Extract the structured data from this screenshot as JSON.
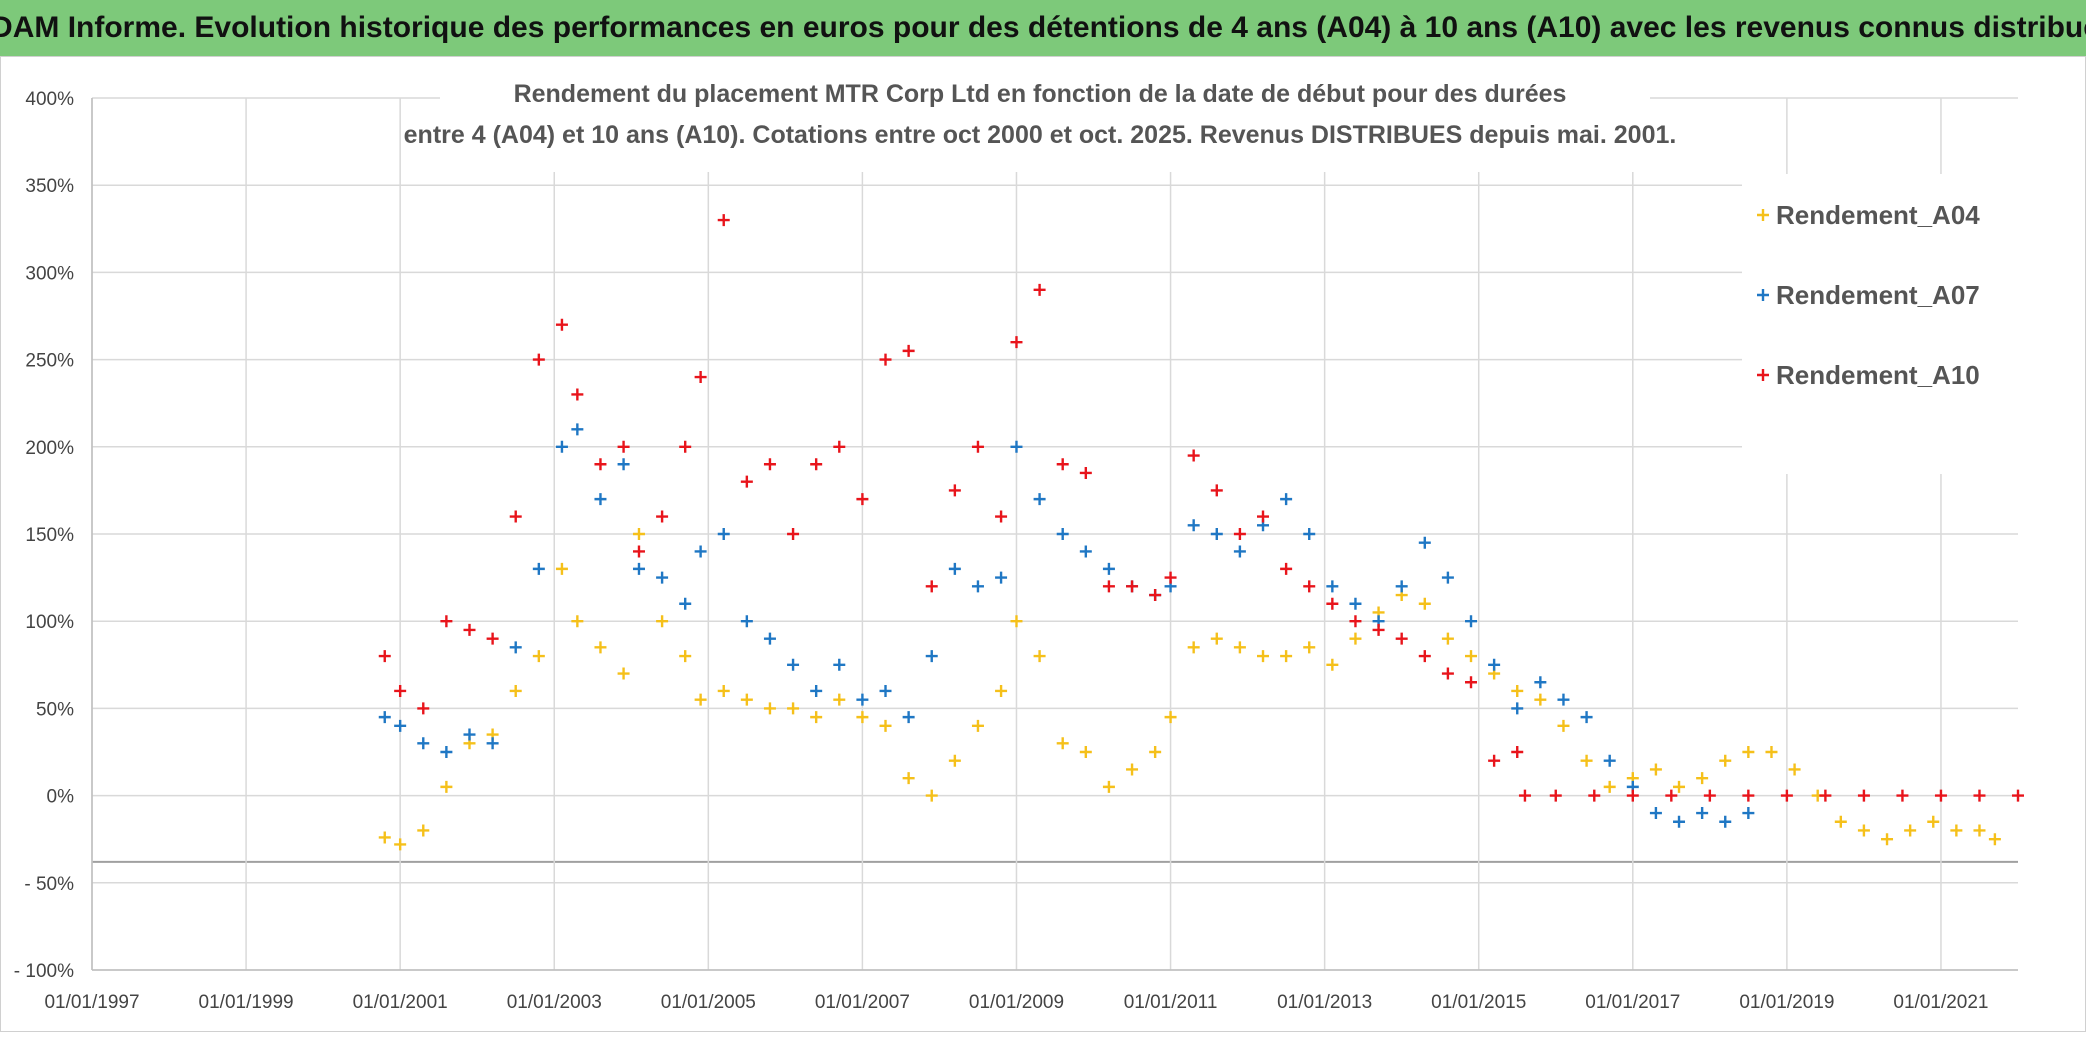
{
  "banner": {
    "text": "ADAM Informe. Evolution historique des performances en euros pour des détentions de 4 ans (A04) à 10 ans (A10) avec les revenus connus distribués"
  },
  "chart_data": {
    "type": "scatter",
    "title_lines": [
      "Rendement du placement MTR Corp Ltd en fonction de la date de début pour des durées",
      "entre 4 (A04) et 10 ans (A10). Cotations entre oct 2000 et oct. 2025. Revenus DISTRIBUES depuis mai. 2001."
    ],
    "xlabel": "",
    "ylabel": "",
    "x_range": [
      1997.0,
      2022.0
    ],
    "y_range": [
      -100,
      400
    ],
    "y_ticks": [
      400,
      350,
      300,
      250,
      200,
      150,
      100,
      50,
      0,
      -50,
      -100
    ],
    "y_tick_labels": [
      "400%",
      "350%",
      "300%",
      "250%",
      "200%",
      "150%",
      "100%",
      "50%",
      "0%",
      "- 50%",
      "- 100%"
    ],
    "x_ticks": [
      1997,
      1999,
      2001,
      2003,
      2005,
      2007,
      2009,
      2011,
      2013,
      2015,
      2017,
      2019,
      2021
    ],
    "x_tick_labels": [
      "01/01/1997",
      "01/01/1999",
      "01/01/2001",
      "01/01/2003",
      "01/01/2005",
      "01/01/2007",
      "01/01/2009",
      "01/01/2011",
      "01/01/2013",
      "01/01/2015",
      "01/01/2017",
      "01/01/2019",
      "01/01/2021"
    ],
    "legend_position": "top-right",
    "series": [
      {
        "name": "Rendement_A04",
        "color": "#f5c01a",
        "x": [
          2000.8,
          2001.0,
          2001.3,
          2001.6,
          2001.9,
          2002.2,
          2002.5,
          2002.8,
          2003.1,
          2003.3,
          2003.6,
          2003.9,
          2004.1,
          2004.4,
          2004.7,
          2004.9,
          2005.2,
          2005.5,
          2005.8,
          2006.1,
          2006.4,
          2006.7,
          2007.0,
          2007.3,
          2007.6,
          2007.9,
          2008.2,
          2008.5,
          2008.8,
          2009.0,
          2009.3,
          2009.6,
          2009.9,
          2010.2,
          2010.5,
          2010.8,
          2011.0,
          2011.3,
          2011.6,
          2011.9,
          2012.2,
          2012.5,
          2012.8,
          2013.1,
          2013.4,
          2013.7,
          2014.0,
          2014.3,
          2014.6,
          2014.9,
          2015.2,
          2015.5,
          2015.8,
          2016.1,
          2016.4,
          2016.7,
          2017.0,
          2017.3,
          2017.6,
          2017.9,
          2018.2,
          2018.5,
          2018.8,
          2019.1,
          2019.4,
          2019.7,
          2020.0,
          2020.3,
          2020.6,
          2020.9,
          2021.2,
          2021.5,
          2021.7
        ],
        "y": [
          -24,
          -28,
          -20,
          5,
          30,
          35,
          60,
          80,
          130,
          100,
          85,
          70,
          150,
          100,
          80,
          55,
          60,
          55,
          50,
          50,
          45,
          55,
          45,
          40,
          10,
          0,
          20,
          40,
          60,
          100,
          80,
          30,
          25,
          5,
          15,
          25,
          45,
          85,
          90,
          85,
          80,
          80,
          85,
          75,
          90,
          105,
          115,
          110,
          90,
          80,
          70,
          60,
          55,
          40,
          20,
          5,
          10,
          15,
          5,
          10,
          20,
          25,
          25,
          15,
          0,
          -15,
          -20,
          -25,
          -20,
          -15,
          -20,
          -20,
          -25
        ]
      },
      {
        "name": "Rendement_A07",
        "color": "#1f77c4",
        "x": [
          2000.8,
          2001.0,
          2001.3,
          2001.6,
          2001.9,
          2002.2,
          2002.5,
          2002.8,
          2003.1,
          2003.3,
          2003.6,
          2003.9,
          2004.1,
          2004.4,
          2004.7,
          2004.9,
          2005.2,
          2005.5,
          2005.8,
          2006.1,
          2006.4,
          2006.7,
          2007.0,
          2007.3,
          2007.6,
          2007.9,
          2008.2,
          2008.5,
          2008.8,
          2009.0,
          2009.3,
          2009.6,
          2009.9,
          2010.2,
          2010.5,
          2010.8,
          2011.0,
          2011.3,
          2011.6,
          2011.9,
          2012.2,
          2012.5,
          2012.8,
          2013.1,
          2013.4,
          2013.7,
          2014.0,
          2014.3,
          2014.6,
          2014.9,
          2015.2,
          2015.5,
          2015.8,
          2016.1,
          2016.4,
          2016.7,
          2017.0,
          2017.3,
          2017.6,
          2017.9,
          2018.2,
          2018.5
        ],
        "y": [
          45,
          40,
          30,
          25,
          35,
          30,
          85,
          130,
          200,
          210,
          170,
          190,
          130,
          125,
          110,
          140,
          150,
          100,
          90,
          75,
          60,
          75,
          55,
          60,
          45,
          80,
          130,
          120,
          125,
          200,
          170,
          150,
          140,
          130,
          120,
          115,
          120,
          155,
          150,
          140,
          155,
          170,
          150,
          120,
          110,
          100,
          120,
          145,
          125,
          100,
          75,
          50,
          65,
          55,
          45,
          20,
          5,
          -10,
          -15,
          -10,
          -15,
          -10
        ]
      },
      {
        "name": "Rendement_A10",
        "color": "#e8141b",
        "x": [
          2000.8,
          2001.0,
          2001.3,
          2001.6,
          2001.9,
          2002.2,
          2002.5,
          2002.8,
          2003.1,
          2003.3,
          2003.6,
          2003.9,
          2004.1,
          2004.4,
          2004.7,
          2004.9,
          2005.2,
          2005.5,
          2005.8,
          2006.1,
          2006.4,
          2006.7,
          2007.0,
          2007.3,
          2007.6,
          2007.9,
          2008.2,
          2008.5,
          2008.8,
          2009.0,
          2009.3,
          2009.6,
          2009.9,
          2010.2,
          2010.5,
          2010.8,
          2011.0,
          2011.3,
          2011.6,
          2011.9,
          2012.2,
          2012.5,
          2012.8,
          2013.1,
          2013.4,
          2013.7,
          2014.0,
          2014.3,
          2014.6,
          2014.9,
          2015.2,
          2015.5,
          2015.6,
          2016.0,
          2016.5,
          2017.0,
          2017.5,
          2018.0,
          2018.5,
          2019.0,
          2019.5,
          2020.0,
          2020.5,
          2021.0,
          2021.5,
          2022.0
        ],
        "y": [
          80,
          60,
          50,
          100,
          95,
          90,
          160,
          250,
          270,
          230,
          190,
          200,
          140,
          160,
          200,
          240,
          330,
          180,
          190,
          150,
          190,
          200,
          170,
          250,
          255,
          120,
          175,
          200,
          160,
          260,
          290,
          190,
          185,
          120,
          120,
          115,
          125,
          195,
          175,
          150,
          160,
          130,
          120,
          110,
          100,
          95,
          90,
          80,
          70,
          65,
          20,
          25,
          0,
          0,
          0,
          0,
          0,
          0,
          0,
          0,
          0,
          0,
          0,
          0,
          0,
          0
        ]
      }
    ]
  }
}
